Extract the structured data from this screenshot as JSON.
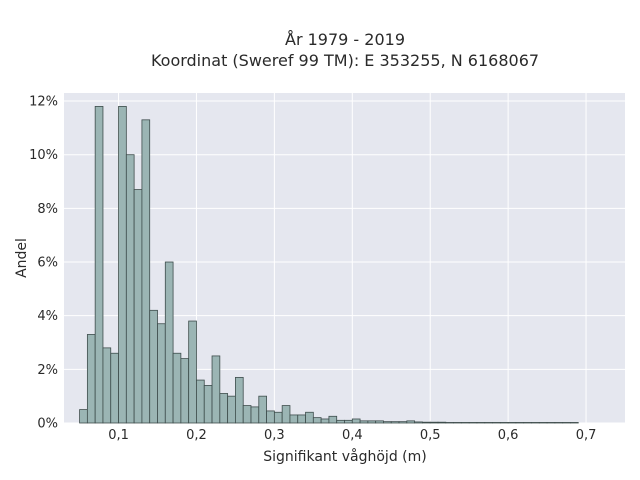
{
  "chart_data": {
    "type": "bar",
    "title": "År 1979 - 2019",
    "subtitle": "Koordinat (Sweref 99 TM): E 353255, N 6168067",
    "xlabel": "Signifikant våghöjd (m)",
    "ylabel": "Andel",
    "xlim": [
      0.03,
      0.75
    ],
    "ylim": [
      0,
      12.3
    ],
    "grid": true,
    "x_ticks": [
      0.1,
      0.2,
      0.3,
      0.4,
      0.5,
      0.6,
      0.7
    ],
    "x_tick_labels": [
      "0,1",
      "0,2",
      "0,3",
      "0,4",
      "0,5",
      "0,6",
      "0,7"
    ],
    "y_ticks": [
      0,
      2,
      4,
      6,
      8,
      10,
      12
    ],
    "y_tick_labels": [
      "0%",
      "2%",
      "4%",
      "6%",
      "8%",
      "10%",
      "12%"
    ],
    "bin_width": 0.01,
    "bin_starts": [
      0.05,
      0.06,
      0.07,
      0.08,
      0.09,
      0.1,
      0.11,
      0.12,
      0.13,
      0.14,
      0.15,
      0.16,
      0.17,
      0.18,
      0.19,
      0.2,
      0.21,
      0.22,
      0.23,
      0.24,
      0.25,
      0.26,
      0.27,
      0.28,
      0.29,
      0.3,
      0.31,
      0.32,
      0.33,
      0.34,
      0.35,
      0.36,
      0.37,
      0.38,
      0.39,
      0.4,
      0.41,
      0.42,
      0.43,
      0.44,
      0.45,
      0.46,
      0.47,
      0.48,
      0.49,
      0.5,
      0.51,
      0.52,
      0.53,
      0.54,
      0.55,
      0.56,
      0.57,
      0.58,
      0.59,
      0.6,
      0.61,
      0.62,
      0.63,
      0.64,
      0.65,
      0.66,
      0.67,
      0.68
    ],
    "values": [
      0.5,
      3.3,
      11.8,
      2.8,
      2.6,
      11.8,
      10.0,
      8.7,
      11.3,
      4.2,
      3.7,
      6.0,
      2.6,
      2.4,
      3.8,
      1.6,
      1.4,
      2.5,
      1.1,
      1.0,
      1.7,
      0.65,
      0.6,
      1.0,
      0.45,
      0.4,
      0.65,
      0.3,
      0.3,
      0.4,
      0.2,
      0.15,
      0.25,
      0.1,
      0.1,
      0.15,
      0.08,
      0.08,
      0.08,
      0.05,
      0.05,
      0.05,
      0.08,
      0.04,
      0.03,
      0.03,
      0.03,
      0.02,
      0.02,
      0.02,
      0.02,
      0.02,
      0.02,
      0.02,
      0.02,
      0.02,
      0.02,
      0.02,
      0.02,
      0.02,
      0.02,
      0.02,
      0.02,
      0.02
    ],
    "colors": {
      "bar_fill": "#9bb5b4",
      "bar_stroke": "#3e4d4c",
      "plot_bg": "#e5e7ef",
      "grid": "#ffffff"
    }
  }
}
